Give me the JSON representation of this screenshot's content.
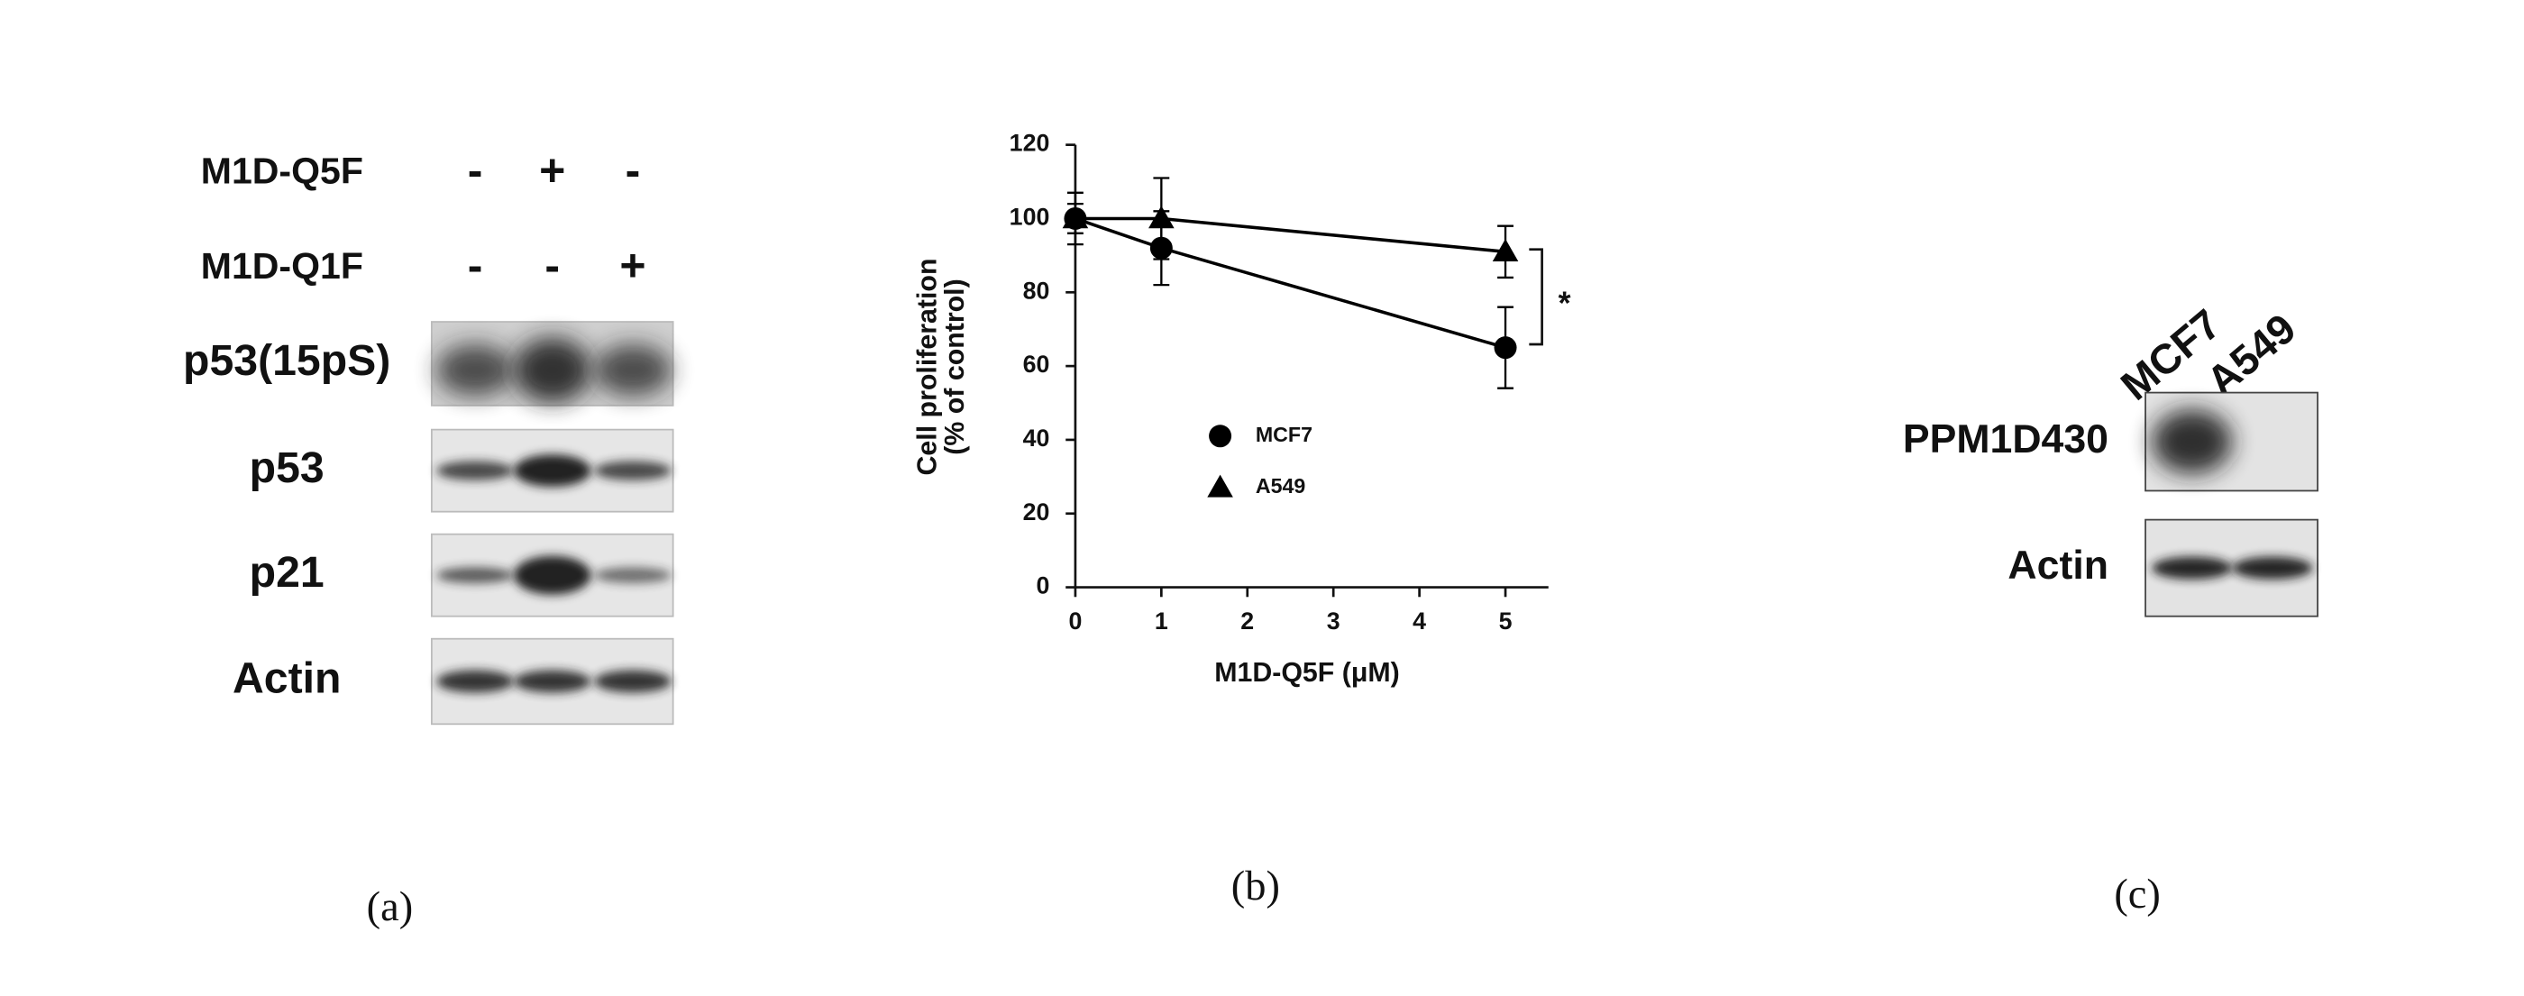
{
  "panel_a": {
    "conditions": [
      {
        "label": "M1D-Q5F",
        "lanes": [
          "-",
          "+",
          "-"
        ]
      },
      {
        "label": "M1D-Q1F",
        "lanes": [
          "-",
          "-",
          "+"
        ]
      }
    ],
    "blots": [
      "p53(15pS)",
      "p53",
      "p21",
      "Actin"
    ]
  },
  "chart_data": {
    "type": "line",
    "y_label": [
      "Cell proliferation",
      "(% of control)"
    ],
    "x_label": "M1D-Q5F (μM)",
    "x": [
      0,
      1,
      5
    ],
    "xlim": [
      0,
      5.5
    ],
    "xticks": [
      0,
      1,
      2,
      3,
      4,
      5
    ],
    "ylim": [
      0,
      120
    ],
    "yticks": [
      0,
      20,
      40,
      60,
      80,
      100,
      120
    ],
    "series": [
      {
        "name": "MCF7",
        "color": "#000000",
        "marker": "circle",
        "values": [
          100,
          92,
          65
        ],
        "errors": [
          4,
          10,
          11
        ]
      },
      {
        "name": "A549",
        "color": "#000000",
        "marker": "triangle",
        "values": [
          100,
          100,
          91
        ],
        "errors": [
          7,
          11,
          7
        ]
      }
    ],
    "legend": "center",
    "annotation": "*"
  },
  "panel_c": {
    "lanes": [
      "MCF7",
      "A549"
    ],
    "blots": [
      "PPM1D430",
      "Actin"
    ]
  },
  "captions": [
    "(a)",
    "(b)",
    "(c)"
  ]
}
